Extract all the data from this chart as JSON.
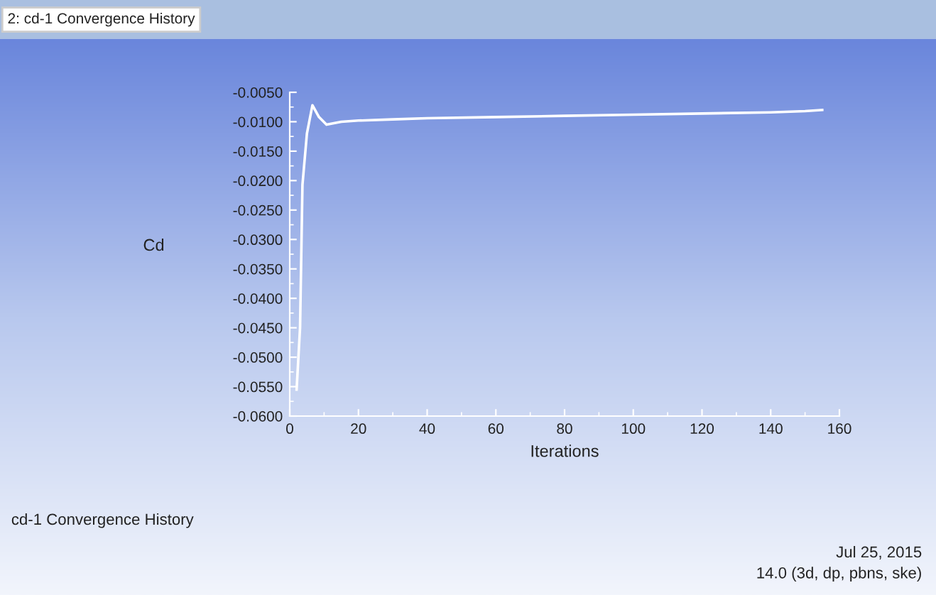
{
  "chart_data": {
    "type": "line",
    "title": "cd-1 Convergence History",
    "xlabel": "Iterations",
    "ylabel": "Cd",
    "annotations": [
      "2: cd-1 Convergence History",
      "Jul 25, 2015",
      "14.0 (3d, dp, pbns, ske)"
    ],
    "x": [
      2,
      3,
      3.7,
      5,
      6.6,
      8.5,
      10.7,
      15,
      20,
      30,
      40,
      60,
      80,
      100,
      120,
      140,
      150,
      155
    ],
    "series": [
      {
        "color": "#ffffff",
        "values": [
          -0.0555,
          -0.045,
          -0.0207,
          -0.012,
          -0.0072,
          -0.0092,
          -0.0105,
          -0.01,
          -0.0098,
          -0.0096,
          -0.0094,
          -0.0092,
          -0.009,
          -0.0088,
          -0.0086,
          -0.0084,
          -0.0082,
          -0.008
        ]
      }
    ],
    "xlim": [
      0,
      160
    ],
    "xticks": [
      0,
      20,
      40,
      60,
      80,
      100,
      120,
      140,
      160
    ],
    "ylim": [
      -0.06,
      -0.005
    ],
    "yticks": [
      {
        "value": -0.06,
        "label": "-0.0600"
      },
      {
        "value": -0.055,
        "label": "-0.0550"
      },
      {
        "value": -0.05,
        "label": "-0.0500"
      },
      {
        "value": -0.045,
        "label": "-0.0450"
      },
      {
        "value": -0.04,
        "label": "-0.0400"
      },
      {
        "value": -0.035,
        "label": "-0.0350"
      },
      {
        "value": -0.03,
        "label": "-0.0300"
      },
      {
        "value": -0.025,
        "label": "-0.0250"
      },
      {
        "value": -0.02,
        "label": "-0.0200"
      },
      {
        "value": -0.015,
        "label": "-0.0150"
      },
      {
        "value": -0.01,
        "label": "-0.0100"
      },
      {
        "value": -0.005,
        "label": "-0.0050"
      }
    ],
    "grid": false,
    "legend": false,
    "marker": "none",
    "line_style": "solid"
  }
}
